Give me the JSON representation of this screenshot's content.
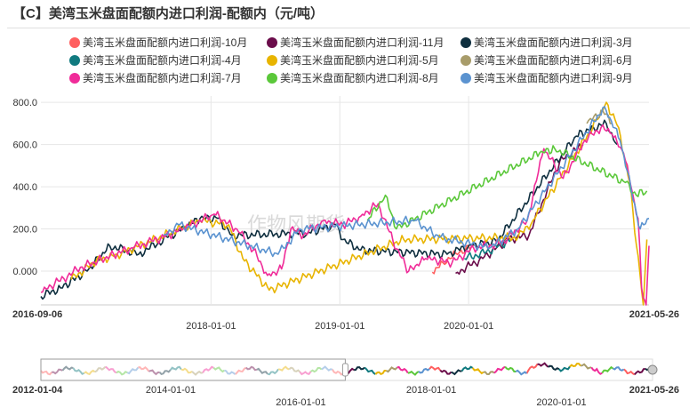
{
  "title": "【C】美湾玉米盘面配额内进口利润-配额内（元/吨）",
  "watermark": "作物风期货",
  "chart_data": {
    "type": "line",
    "title": "【C】美湾玉米盘面配额内进口利润-配额内（元/吨）",
    "xlabel": "",
    "ylabel": "",
    "x_range": [
      "2016-09-06",
      "2021-05-26"
    ],
    "ylim": [
      -160,
      830
    ],
    "y_ticks": [
      "800.0",
      "600.0",
      "400.0",
      "200.0",
      "0.000"
    ],
    "x_ticks": [
      "2016-09-06",
      "2018-01-01",
      "2019-01-01",
      "2020-01-01",
      "2021-05-26"
    ],
    "grid": true,
    "legend_position": "top",
    "series": [
      {
        "name": "美湾玉米盘面配额内进口利润-10月",
        "color": "#ff5f5f",
        "points": [
          [
            "2019-09-20",
            -5
          ],
          [
            "2019-10-20",
            40
          ],
          [
            "2019-11-25",
            85
          ],
          [
            "2020-01-20",
            120
          ]
        ]
      },
      {
        "name": "美湾玉米盘面配额内进口利润-11月",
        "color": "#6b0d4b",
        "points": [
          [
            "2019-11-25",
            -10
          ],
          [
            "2020-02-10",
            60
          ],
          [
            "2020-04-20",
            150
          ],
          [
            "2020-06-20",
            170
          ],
          [
            "2020-08-10",
            380
          ],
          [
            "2020-09-15",
            520
          ],
          [
            "2020-10-20",
            560
          ],
          [
            "2020-11-20",
            600
          ]
        ]
      },
      {
        "name": "美湾玉米盘面配额内进口利润-3月",
        "color": "#0f2f3f",
        "points": [
          [
            "2016-09-06",
            -120
          ],
          [
            "2016-11-01",
            -80
          ],
          [
            "2017-01-15",
            0
          ],
          [
            "2017-03-20",
            120
          ],
          [
            "2017-06-10",
            80
          ],
          [
            "2017-09-01",
            160
          ],
          [
            "2017-12-01",
            250
          ],
          [
            "2018-01-20",
            250
          ],
          [
            "2018-03-01",
            170
          ],
          [
            "2018-10-01",
            180
          ],
          [
            "2018-12-20",
            220
          ],
          [
            "2019-01-10",
            150
          ],
          [
            "2019-03-01",
            100
          ],
          [
            "2019-11-01",
            80
          ],
          [
            "2020-01-01",
            120
          ],
          [
            "2020-03-20",
            140
          ],
          [
            "2020-11-01",
            640
          ],
          [
            "2020-12-20",
            680
          ],
          [
            "2021-01-25",
            700
          ],
          [
            "2021-02-25",
            600
          ]
        ]
      },
      {
        "name": "美湾玉米盘面配额内进口利润-4月",
        "color": "#107a7f",
        "points": [
          [
            "2019-12-20",
            60
          ],
          [
            "2020-02-20",
            90
          ],
          [
            "2020-05-01",
            150
          ]
        ]
      },
      {
        "name": "美湾玉米盘面配额内进口利润-5月",
        "color": "#e8b400",
        "points": [
          [
            "2016-12-01",
            -40
          ],
          [
            "2017-02-10",
            50
          ],
          [
            "2017-04-01",
            70
          ],
          [
            "2017-12-01",
            240
          ],
          [
            "2018-02-20",
            220
          ],
          [
            "2018-04-01",
            60
          ],
          [
            "2018-06-15",
            -90
          ],
          [
            "2019-07-01",
            150
          ],
          [
            "2020-05-20",
            160
          ],
          [
            "2020-07-01",
            240
          ],
          [
            "2021-01-01",
            720
          ],
          [
            "2021-01-25",
            800
          ],
          [
            "2021-03-01",
            680
          ],
          [
            "2021-04-01",
            420
          ],
          [
            "2021-05-10",
            -160
          ],
          [
            "2021-05-20",
            150
          ]
        ]
      },
      {
        "name": "美湾玉米盘面配额内进口利润-6月",
        "color": "#a89c6a",
        "points": [
          [
            "2020-12-01",
            700
          ],
          [
            "2021-01-15",
            760
          ],
          [
            "2021-02-10",
            700
          ]
        ]
      },
      {
        "name": "美湾玉米盘面配额内进口利润-7月",
        "color": "#f02c99",
        "points": [
          [
            "2016-09-06",
            -100
          ],
          [
            "2016-10-15",
            -60
          ],
          [
            "2017-01-01",
            20
          ],
          [
            "2017-05-20",
            110
          ],
          [
            "2017-08-01",
            150
          ],
          [
            "2017-10-15",
            200
          ],
          [
            "2018-01-10",
            270
          ],
          [
            "2018-03-15",
            200
          ],
          [
            "2018-05-01",
            100
          ],
          [
            "2018-06-10",
            -20
          ],
          [
            "2018-07-20",
            10
          ],
          [
            "2018-08-15",
            200
          ],
          [
            "2018-09-20",
            170
          ],
          [
            "2018-11-15",
            240
          ],
          [
            "2019-01-10",
            220
          ],
          [
            "2019-03-01",
            260
          ],
          [
            "2019-04-20",
            320
          ],
          [
            "2019-06-01",
            140
          ],
          [
            "2019-07-15",
            0
          ],
          [
            "2019-09-01",
            60
          ],
          [
            "2019-11-15",
            40
          ],
          [
            "2020-01-15",
            110
          ],
          [
            "2020-04-01",
            130
          ],
          [
            "2020-06-15",
            240
          ],
          [
            "2020-08-01",
            580
          ],
          [
            "2020-09-25",
            440
          ],
          [
            "2020-11-25",
            620
          ],
          [
            "2021-01-10",
            680
          ],
          [
            "2021-02-10",
            650
          ],
          [
            "2021-03-15",
            560
          ],
          [
            "2021-04-05",
            400
          ],
          [
            "2021-04-25",
            250
          ],
          [
            "2021-05-05",
            -80
          ],
          [
            "2021-05-18",
            -160
          ],
          [
            "2021-05-26",
            120
          ]
        ]
      },
      {
        "name": "美湾玉米盘面配额内进口利润-8月",
        "color": "#5bc83a",
        "points": [
          [
            "2019-03-20",
            240
          ],
          [
            "2019-05-10",
            360
          ],
          [
            "2019-06-10",
            200
          ],
          [
            "2020-07-20",
            560
          ],
          [
            "2020-09-01",
            580
          ],
          [
            "2021-03-20",
            420
          ],
          [
            "2021-04-20",
            360
          ],
          [
            "2021-05-20",
            380
          ]
        ]
      },
      {
        "name": "美湾玉米盘面配额内进口利润-9月",
        "color": "#5b93d0",
        "points": [
          [
            "2017-08-20",
            170
          ],
          [
            "2017-10-01",
            220
          ],
          [
            "2018-07-10",
            80
          ],
          [
            "2018-09-10",
            200
          ],
          [
            "2019-08-01",
            240
          ],
          [
            "2019-10-10",
            160
          ],
          [
            "2020-03-01",
            110
          ],
          [
            "2020-05-20",
            200
          ],
          [
            "2021-01-20",
            780
          ],
          [
            "2021-03-05",
            620
          ],
          [
            "2021-05-01",
            200
          ],
          [
            "2021-05-26",
            250
          ]
        ]
      }
    ]
  },
  "navigator": {
    "x_range": [
      "2012-01-04",
      "2021-05-26"
    ],
    "x_ticks": [
      "2012-01-04",
      "2014-01-01",
      "2016-01-01",
      "2018-01-01",
      "2020-01-01",
      "2021-05-26"
    ],
    "selected_range": [
      "2012-01-04",
      "2016-09-06"
    ]
  }
}
